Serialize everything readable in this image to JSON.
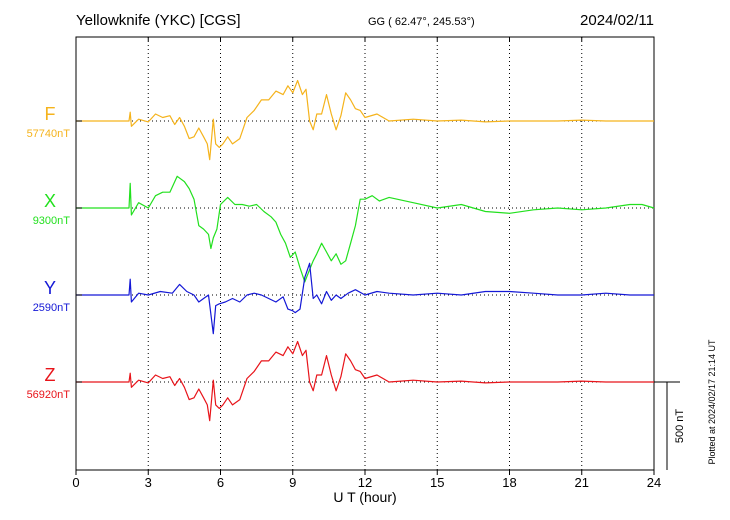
{
  "header": {
    "station": "Yellowknife (YKC)  [CGS]",
    "coords": "GG ( 62.47°, 245.53°)",
    "date": "2024/02/11"
  },
  "footer": {
    "plotted": "Plotted at 2024/02/17 21:14 UT"
  },
  "chart_data": {
    "type": "line",
    "xlabel": "U T (hour)",
    "xlim": [
      0,
      24
    ],
    "xticks": [
      "0",
      "3",
      "6",
      "9",
      "12",
      "15",
      "18",
      "21",
      "24"
    ],
    "grid": true,
    "scale_bar_label": "500 nT",
    "scale_bar_nt": 500,
    "series": [
      {
        "name": "F",
        "baseline_label": "57740nT",
        "baseline_nt": 57740,
        "color": "#f5b31c",
        "x": [
          0,
          2.2,
          2.25,
          2.3,
          2.6,
          3,
          3.3,
          3.6,
          3.9,
          4.1,
          4.3,
          4.5,
          4.7,
          4.9,
          5.1,
          5.3,
          5.45,
          5.55,
          5.7,
          5.8,
          5.95,
          6.1,
          6.3,
          6.5,
          6.8,
          7.1,
          7.4,
          7.7,
          8,
          8.3,
          8.6,
          8.8,
          9,
          9.2,
          9.4,
          9.55,
          9.7,
          9.85,
          10,
          10.2,
          10.4,
          10.6,
          10.8,
          11,
          11.2,
          11.4,
          11.6,
          11.8,
          12,
          12.5,
          13,
          14,
          15,
          16,
          17,
          18,
          19,
          20,
          21,
          22,
          23,
          24
        ],
        "y": [
          0,
          0,
          50,
          -30,
          10,
          -5,
          40,
          20,
          30,
          -20,
          20,
          -30,
          -100,
          -90,
          -40,
          -90,
          -130,
          -220,
          10,
          -130,
          -150,
          -130,
          -90,
          -130,
          -100,
          20,
          60,
          120,
          120,
          170,
          150,
          200,
          160,
          230,
          150,
          180,
          0,
          -50,
          40,
          40,
          150,
          40,
          -50,
          30,
          160,
          120,
          70,
          60,
          20,
          40,
          0,
          10,
          0,
          5,
          -5,
          0,
          0,
          0,
          5,
          0,
          0,
          0
        ]
      },
      {
        "name": "X",
        "baseline_label": "9300nT",
        "baseline_nt": 9300,
        "color": "#22e01e",
        "x": [
          0,
          2.2,
          2.25,
          2.3,
          2.6,
          3,
          3.3,
          3.6,
          3.9,
          4.2,
          4.5,
          4.7,
          4.9,
          5.1,
          5.3,
          5.5,
          5.6,
          5.7,
          5.85,
          6,
          6.3,
          6.6,
          6.9,
          7.2,
          7.5,
          7.8,
          8.1,
          8.3,
          8.5,
          8.7,
          8.9,
          9.1,
          9.3,
          9.5,
          9.7,
          9.85,
          10,
          10.2,
          10.4,
          10.6,
          10.8,
          11,
          11.2,
          11.4,
          11.6,
          11.8,
          12,
          12.3,
          12.6,
          13,
          14,
          15,
          16,
          17,
          18,
          19,
          20,
          21,
          22,
          23,
          23.5,
          24
        ],
        "y": [
          0,
          0,
          140,
          -40,
          30,
          0,
          70,
          90,
          90,
          180,
          150,
          110,
          50,
          -100,
          -120,
          -150,
          -230,
          -170,
          -120,
          20,
          60,
          20,
          20,
          10,
          20,
          -20,
          -50,
          -80,
          -150,
          -200,
          -280,
          -250,
          -340,
          -420,
          -350,
          -300,
          -260,
          -200,
          -250,
          -300,
          -260,
          -320,
          -300,
          -200,
          -100,
          50,
          50,
          70,
          40,
          60,
          30,
          0,
          20,
          -20,
          -30,
          -10,
          0,
          -10,
          0,
          20,
          20,
          0
        ]
      },
      {
        "name": "Y",
        "baseline_label": "2590nT",
        "baseline_nt": 2590,
        "color": "#1418d6",
        "x": [
          0,
          2.2,
          2.25,
          2.3,
          2.6,
          3,
          3.5,
          4,
          4.3,
          4.6,
          4.9,
          5.1,
          5.3,
          5.5,
          5.7,
          5.8,
          5.95,
          6.2,
          6.5,
          6.8,
          7.1,
          7.4,
          7.7,
          8,
          8.3,
          8.6,
          8.8,
          9,
          9.1,
          9.3,
          9.5,
          9.7,
          9.85,
          10,
          10.2,
          10.4,
          10.6,
          10.8,
          11,
          11.3,
          11.6,
          12,
          12.5,
          13,
          14,
          15,
          16,
          17,
          18,
          19,
          20,
          21,
          22,
          23,
          24
        ],
        "y": [
          0,
          0,
          90,
          -40,
          10,
          0,
          20,
          10,
          60,
          20,
          0,
          -40,
          -20,
          0,
          -220,
          -60,
          -50,
          -40,
          -20,
          -40,
          0,
          10,
          0,
          -20,
          -40,
          -10,
          -80,
          -90,
          -100,
          -80,
          100,
          180,
          -20,
          0,
          -50,
          20,
          -30,
          0,
          -20,
          10,
          30,
          0,
          20,
          10,
          0,
          10,
          0,
          20,
          20,
          10,
          0,
          0,
          10,
          0,
          0
        ]
      },
      {
        "name": "Z",
        "baseline_label": "56920nT",
        "baseline_nt": 56920,
        "color": "#e8141a",
        "x": [
          0,
          2.2,
          2.25,
          2.3,
          2.6,
          3,
          3.3,
          3.6,
          3.9,
          4.1,
          4.3,
          4.5,
          4.7,
          4.9,
          5.1,
          5.3,
          5.45,
          5.55,
          5.7,
          5.8,
          5.95,
          6.1,
          6.3,
          6.5,
          6.8,
          7.1,
          7.4,
          7.7,
          8,
          8.3,
          8.6,
          8.8,
          9,
          9.2,
          9.4,
          9.55,
          9.7,
          9.85,
          10,
          10.2,
          10.4,
          10.6,
          10.8,
          11,
          11.2,
          11.4,
          11.6,
          11.8,
          12,
          12.5,
          13,
          14,
          15,
          16,
          17,
          18,
          19,
          20,
          21,
          22,
          23,
          24
        ],
        "y": [
          0,
          0,
          50,
          -30,
          10,
          -5,
          40,
          20,
          30,
          -20,
          20,
          -30,
          -100,
          -90,
          -40,
          -90,
          -130,
          -220,
          10,
          -130,
          -150,
          -130,
          -90,
          -130,
          -100,
          20,
          60,
          120,
          120,
          170,
          150,
          200,
          160,
          230,
          150,
          180,
          0,
          -50,
          40,
          40,
          150,
          40,
          -50,
          30,
          160,
          120,
          70,
          60,
          20,
          40,
          0,
          10,
          0,
          5,
          -5,
          0,
          0,
          0,
          5,
          0,
          0,
          0
        ]
      }
    ]
  }
}
